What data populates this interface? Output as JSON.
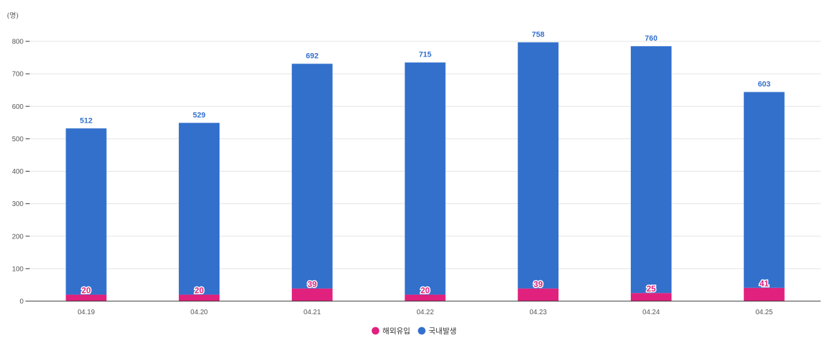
{
  "chart_data": {
    "type": "bar",
    "stacked": true,
    "unit_label": "(명)",
    "categories": [
      "04.19",
      "04.20",
      "04.21",
      "04.22",
      "04.23",
      "04.24",
      "04.25"
    ],
    "series": [
      {
        "name": "해외유입",
        "color": "#e0217d",
        "values": [
          20,
          20,
          39,
          20,
          39,
          25,
          41
        ]
      },
      {
        "name": "국내발생",
        "color": "#3370cc",
        "values": [
          512,
          529,
          692,
          715,
          758,
          760,
          603
        ]
      }
    ],
    "y_ticks": [
      0,
      100,
      200,
      300,
      400,
      500,
      600,
      700,
      800
    ],
    "ylim": [
      0,
      800
    ],
    "grid": true,
    "legend_position": "bottom-center"
  }
}
